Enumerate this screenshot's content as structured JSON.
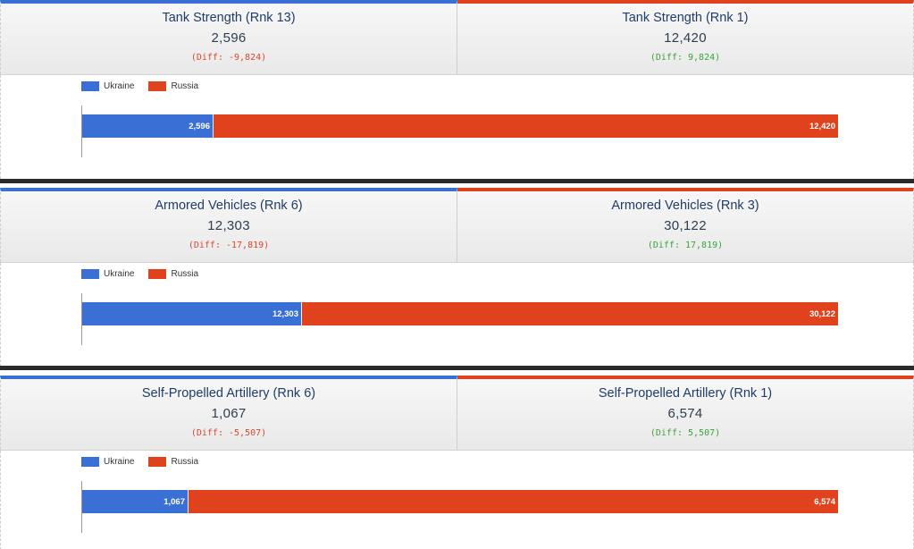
{
  "colors": {
    "ukraine": "#3a6fd6",
    "russia": "#e0421d",
    "diff_negative": "#d9472b",
    "diff_positive": "#3aa33a"
  },
  "panels": [
    {
      "left": {
        "title": "Tank Strength (Rnk 13)",
        "value": "2,596",
        "diff": "(Diff: -9,824)"
      },
      "right": {
        "title": "Tank Strength (Rnk 1)",
        "value": "12,420",
        "diff": "(Diff: 9,824)"
      },
      "legend": {
        "ukraine": "Ukraine",
        "russia": "Russia"
      }
    },
    {
      "left": {
        "title": "Armored Vehicles (Rnk 6)",
        "value": "12,303",
        "diff": "(Diff: -17,819)"
      },
      "right": {
        "title": "Armored Vehicles (Rnk 3)",
        "value": "30,122",
        "diff": "(Diff: 17,819)"
      },
      "legend": {
        "ukraine": "Ukraine",
        "russia": "Russia"
      }
    },
    {
      "left": {
        "title": "Self-Propelled Artillery (Rnk 6)",
        "value": "1,067",
        "diff": "(Diff: -5,507)"
      },
      "right": {
        "title": "Self-Propelled Artillery (Rnk 1)",
        "value": "6,574",
        "diff": "(Diff: 5,507)"
      },
      "legend": {
        "ukraine": "Ukraine",
        "russia": "Russia"
      }
    }
  ],
  "chart_data": [
    {
      "type": "bar",
      "orientation": "horizontal-stacked",
      "series": [
        {
          "name": "Ukraine",
          "values": [
            2596
          ],
          "label": "2,596"
        },
        {
          "name": "Russia",
          "values": [
            12420
          ],
          "label": "12,420"
        }
      ],
      "legend_position": "top-left",
      "grid": false
    },
    {
      "type": "bar",
      "orientation": "horizontal-stacked",
      "series": [
        {
          "name": "Ukraine",
          "values": [
            12303
          ],
          "label": "12,303"
        },
        {
          "name": "Russia",
          "values": [
            30122
          ],
          "label": "30,122"
        }
      ],
      "legend_position": "top-left",
      "grid": false
    },
    {
      "type": "bar",
      "orientation": "horizontal-stacked",
      "series": [
        {
          "name": "Ukraine",
          "values": [
            1067
          ],
          "label": "1,067"
        },
        {
          "name": "Russia",
          "values": [
            6574
          ],
          "label": "6,574"
        }
      ],
      "legend_position": "top-left",
      "grid": false
    }
  ]
}
